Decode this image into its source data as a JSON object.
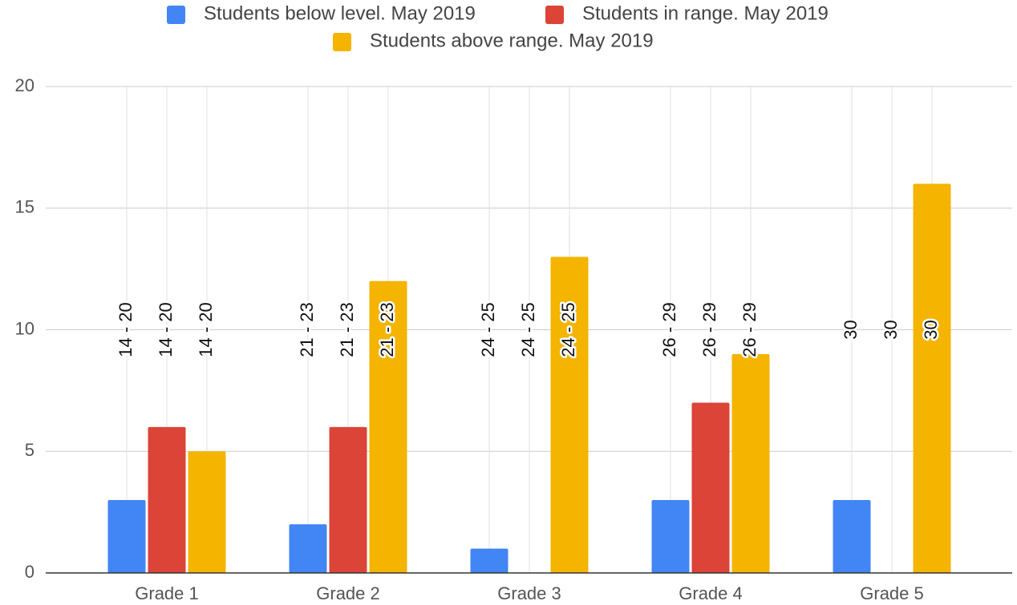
{
  "chart_data": {
    "type": "bar",
    "categories": [
      "Grade 1",
      "Grade 2",
      "Grade 3",
      "Grade 4",
      "Grade 5"
    ],
    "series": [
      {
        "name": "Students below level. May 2019",
        "color": "#4285f4",
        "values": [
          3,
          2,
          1,
          3,
          3
        ],
        "labels": [
          "14 - 20",
          "21 - 23",
          "24 - 25",
          "26 - 29",
          "30"
        ]
      },
      {
        "name": "Students in range. May 2019",
        "color": "#db4437",
        "values": [
          6,
          6,
          0,
          7,
          0
        ],
        "labels": [
          "14 - 20",
          "21 - 23",
          "24 - 25",
          "26 - 29",
          "30"
        ]
      },
      {
        "name": "Students above range. May 2019",
        "color": "#f4b400",
        "values": [
          5,
          12,
          13,
          9,
          16
        ],
        "labels": [
          "14 - 20",
          "21 - 23",
          "24 - 25",
          "26 - 29",
          "30"
        ]
      }
    ],
    "ylim": [
      0,
      20
    ],
    "yticks": [
      0,
      5,
      10,
      15,
      20
    ],
    "grid": true
  }
}
